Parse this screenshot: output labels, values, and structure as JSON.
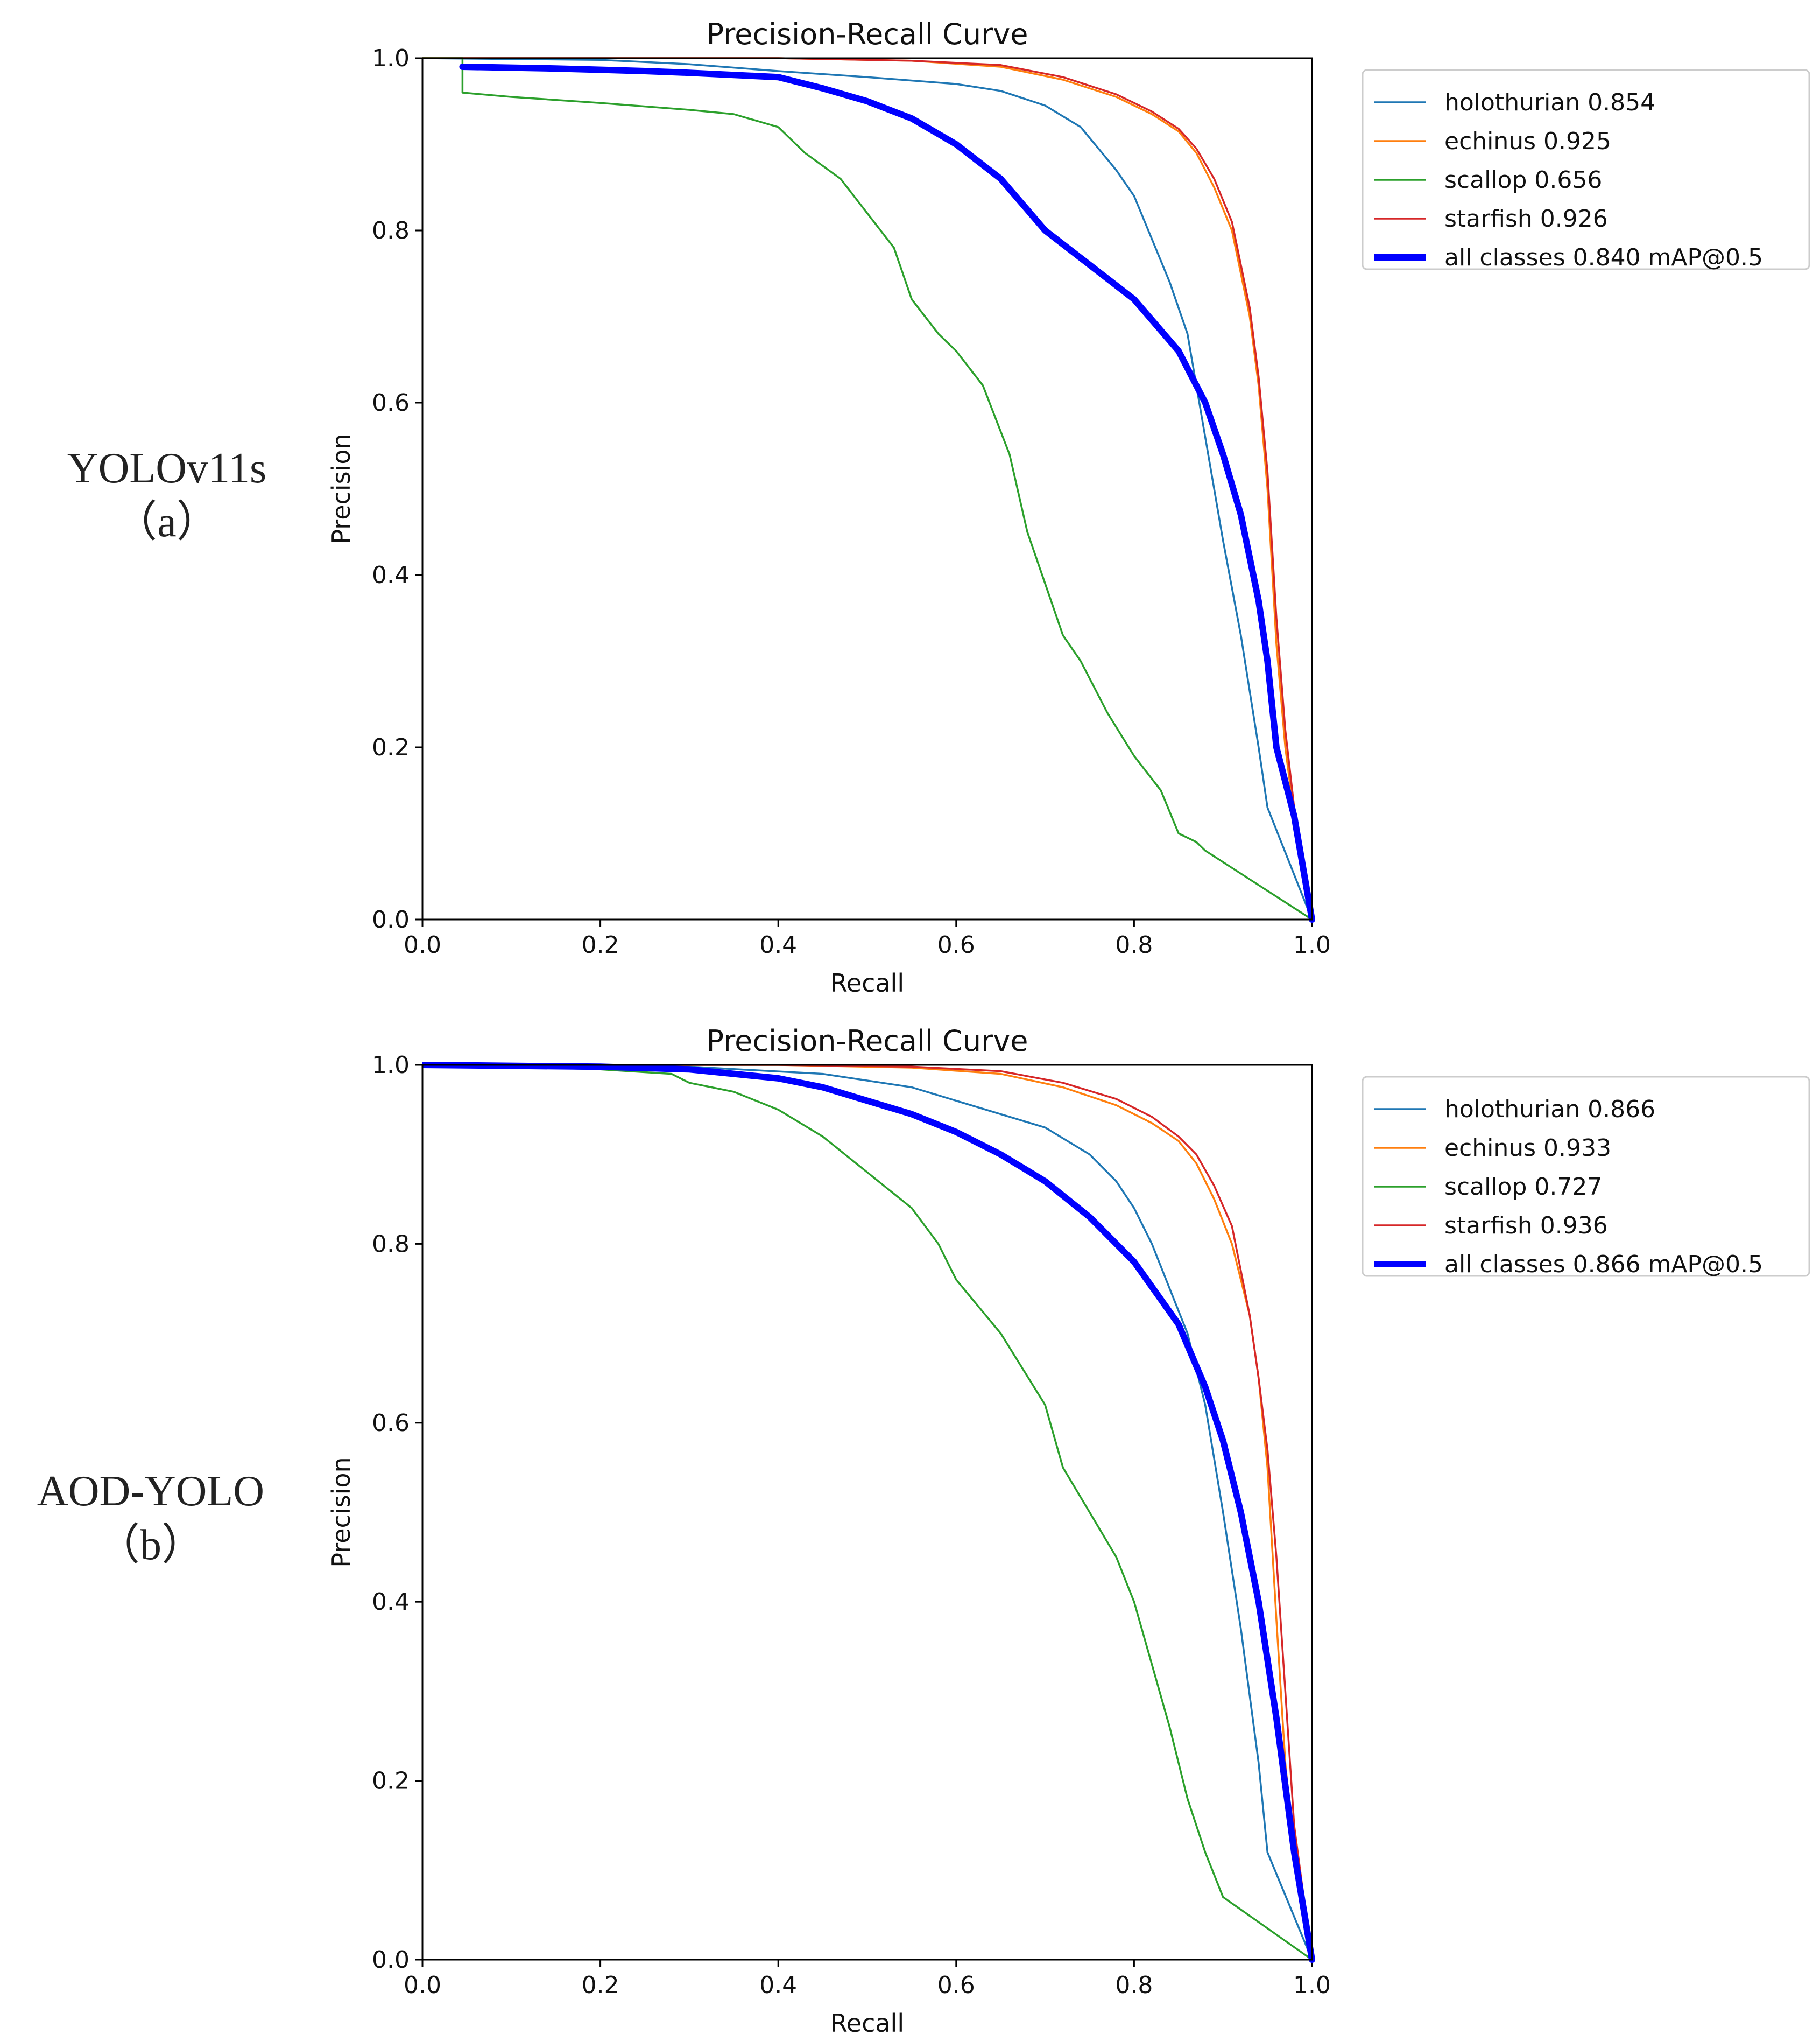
{
  "colors": {
    "holothurian": "#1f77b4",
    "echinus": "#ff7f0e",
    "scallop": "#2ca02c",
    "starfish": "#d62728",
    "all": "#0000ff"
  },
  "panels": [
    {
      "model_name": "YOLOv11s",
      "panel_tag": "（a）",
      "legend_labels": [
        "holothurian 0.854",
        "echinus 0.925",
        "scallop 0.656",
        "starfish 0.926",
        "all classes 0.840 mAP@0.5"
      ]
    },
    {
      "model_name": "AOD-YOLO",
      "panel_tag": "（b）",
      "legend_labels": [
        "holothurian 0.866",
        "echinus 0.933",
        "scallop 0.727",
        "starfish 0.936",
        "all classes 0.866 mAP@0.5"
      ]
    }
  ],
  "chart_data": [
    {
      "type": "line",
      "title": "Precision-Recall Curve",
      "xlabel": "Recall",
      "ylabel": "Precision",
      "xlim": [
        0,
        1
      ],
      "ylim": [
        0,
        1
      ],
      "xticks": [
        "0.0",
        "0.2",
        "0.4",
        "0.6",
        "0.8",
        "1.0"
      ],
      "yticks": [
        "0.0",
        "0.2",
        "0.4",
        "0.6",
        "0.8",
        "1.0"
      ],
      "legend_position": "outside upper right",
      "series": [
        {
          "name": "holothurian",
          "ap": 0.854,
          "color_key": "holothurian",
          "width": "thin",
          "x": [
            0,
            0.2,
            0.3,
            0.4,
            0.5,
            0.6,
            0.65,
            0.7,
            0.74,
            0.78,
            0.8,
            0.82,
            0.84,
            0.86,
            0.87,
            0.88,
            0.9,
            0.92,
            0.94,
            0.95,
            1.0
          ],
          "y": [
            1.0,
            0.998,
            0.993,
            0.985,
            0.978,
            0.97,
            0.962,
            0.945,
            0.92,
            0.87,
            0.84,
            0.79,
            0.74,
            0.68,
            0.62,
            0.56,
            0.44,
            0.33,
            0.2,
            0.13,
            0.0
          ]
        },
        {
          "name": "echinus",
          "ap": 0.925,
          "color_key": "echinus",
          "width": "thin",
          "x": [
            0,
            0.4,
            0.55,
            0.65,
            0.72,
            0.78,
            0.82,
            0.85,
            0.87,
            0.89,
            0.91,
            0.92,
            0.93,
            0.94,
            0.95,
            0.96,
            0.97,
            0.98,
            1.0
          ],
          "y": [
            1.0,
            1.0,
            0.997,
            0.99,
            0.975,
            0.955,
            0.935,
            0.915,
            0.89,
            0.85,
            0.8,
            0.75,
            0.7,
            0.62,
            0.5,
            0.32,
            0.2,
            0.12,
            0.0
          ]
        },
        {
          "name": "scallop",
          "ap": 0.656,
          "color_key": "scallop",
          "width": "thin",
          "x": [
            0,
            0.045,
            0.045,
            0.1,
            0.2,
            0.3,
            0.35,
            0.4,
            0.43,
            0.47,
            0.5,
            0.53,
            0.55,
            0.58,
            0.6,
            0.63,
            0.66,
            0.68,
            0.7,
            0.72,
            0.74,
            0.77,
            0.8,
            0.83,
            0.85,
            0.87,
            0.88,
            1.0
          ],
          "y": [
            1.0,
            1.0,
            0.96,
            0.955,
            0.948,
            0.94,
            0.935,
            0.92,
            0.89,
            0.86,
            0.82,
            0.78,
            0.72,
            0.68,
            0.66,
            0.62,
            0.54,
            0.45,
            0.39,
            0.33,
            0.3,
            0.24,
            0.19,
            0.15,
            0.1,
            0.09,
            0.08,
            0.0
          ]
        },
        {
          "name": "starfish",
          "ap": 0.926,
          "color_key": "starfish",
          "width": "thin",
          "x": [
            0,
            0.4,
            0.55,
            0.65,
            0.72,
            0.78,
            0.82,
            0.85,
            0.87,
            0.89,
            0.91,
            0.92,
            0.93,
            0.94,
            0.95,
            0.96,
            0.97,
            0.98,
            1.0
          ],
          "y": [
            1.0,
            1.0,
            0.997,
            0.992,
            0.978,
            0.958,
            0.938,
            0.918,
            0.895,
            0.86,
            0.81,
            0.76,
            0.71,
            0.63,
            0.52,
            0.35,
            0.22,
            0.13,
            0.0
          ]
        },
        {
          "name": "all classes",
          "ap": 0.84,
          "color_key": "all",
          "width": "thick",
          "x": [
            0.045,
            0.15,
            0.25,
            0.3,
            0.4,
            0.45,
            0.5,
            0.55,
            0.6,
            0.65,
            0.7,
            0.75,
            0.8,
            0.85,
            0.88,
            0.9,
            0.92,
            0.94,
            0.95,
            0.96,
            0.98,
            1.0
          ],
          "y": [
            0.99,
            0.988,
            0.985,
            0.983,
            0.978,
            0.965,
            0.95,
            0.93,
            0.9,
            0.86,
            0.8,
            0.76,
            0.72,
            0.66,
            0.6,
            0.54,
            0.47,
            0.37,
            0.3,
            0.2,
            0.12,
            0.0
          ]
        }
      ]
    },
    {
      "type": "line",
      "title": "Precision-Recall Curve",
      "xlabel": "Recall",
      "ylabel": "Precision",
      "xlim": [
        0,
        1
      ],
      "ylim": [
        0,
        1
      ],
      "xticks": [
        "0.0",
        "0.2",
        "0.4",
        "0.6",
        "0.8",
        "1.0"
      ],
      "yticks": [
        "0.0",
        "0.2",
        "0.4",
        "0.6",
        "0.8",
        "1.0"
      ],
      "legend_position": "outside upper right",
      "series": [
        {
          "name": "holothurian",
          "ap": 0.866,
          "color_key": "holothurian",
          "width": "thin",
          "x": [
            0,
            0.3,
            0.45,
            0.55,
            0.6,
            0.65,
            0.7,
            0.75,
            0.78,
            0.8,
            0.82,
            0.84,
            0.86,
            0.88,
            0.9,
            0.92,
            0.94,
            0.95,
            1.0
          ],
          "y": [
            1.0,
            0.998,
            0.99,
            0.975,
            0.96,
            0.945,
            0.93,
            0.9,
            0.87,
            0.84,
            0.8,
            0.75,
            0.7,
            0.62,
            0.5,
            0.37,
            0.22,
            0.12,
            0.0
          ]
        },
        {
          "name": "echinus",
          "ap": 0.933,
          "color_key": "echinus",
          "width": "thin",
          "x": [
            0,
            0.4,
            0.55,
            0.65,
            0.72,
            0.78,
            0.82,
            0.85,
            0.87,
            0.89,
            0.91,
            0.92,
            0.93,
            0.94,
            0.95,
            0.96,
            0.97,
            0.98,
            1.0
          ],
          "y": [
            1.0,
            1.0,
            0.997,
            0.99,
            0.975,
            0.955,
            0.935,
            0.915,
            0.89,
            0.85,
            0.8,
            0.76,
            0.72,
            0.65,
            0.55,
            0.38,
            0.22,
            0.12,
            0.0
          ]
        },
        {
          "name": "scallop",
          "ap": 0.727,
          "color_key": "scallop",
          "width": "thin",
          "x": [
            0,
            0.1,
            0.2,
            0.28,
            0.3,
            0.35,
            0.4,
            0.45,
            0.5,
            0.55,
            0.58,
            0.6,
            0.65,
            0.7,
            0.72,
            0.75,
            0.78,
            0.8,
            0.82,
            0.84,
            0.86,
            0.88,
            0.9,
            1.0
          ],
          "y": [
            1.0,
            0.998,
            0.995,
            0.99,
            0.98,
            0.97,
            0.95,
            0.92,
            0.88,
            0.84,
            0.8,
            0.76,
            0.7,
            0.62,
            0.55,
            0.5,
            0.45,
            0.4,
            0.33,
            0.26,
            0.18,
            0.12,
            0.07,
            0.0
          ]
        },
        {
          "name": "starfish",
          "ap": 0.936,
          "color_key": "starfish",
          "width": "thin",
          "x": [
            0,
            0.4,
            0.55,
            0.65,
            0.72,
            0.78,
            0.82,
            0.85,
            0.87,
            0.89,
            0.91,
            0.92,
            0.93,
            0.94,
            0.95,
            0.96,
            0.97,
            0.98,
            1.0
          ],
          "y": [
            1.0,
            1.0,
            0.998,
            0.993,
            0.98,
            0.962,
            0.942,
            0.92,
            0.9,
            0.865,
            0.82,
            0.77,
            0.72,
            0.65,
            0.57,
            0.45,
            0.3,
            0.15,
            0.0
          ]
        },
        {
          "name": "all classes",
          "ap": 0.866,
          "color_key": "all",
          "width": "thick",
          "x": [
            0,
            0.2,
            0.3,
            0.4,
            0.45,
            0.5,
            0.55,
            0.6,
            0.65,
            0.7,
            0.75,
            0.8,
            0.85,
            0.88,
            0.9,
            0.92,
            0.94,
            0.96,
            0.98,
            1.0
          ],
          "y": [
            1.0,
            0.998,
            0.995,
            0.985,
            0.975,
            0.96,
            0.945,
            0.925,
            0.9,
            0.87,
            0.83,
            0.78,
            0.71,
            0.64,
            0.58,
            0.5,
            0.4,
            0.27,
            0.12,
            0.0
          ]
        }
      ]
    }
  ]
}
